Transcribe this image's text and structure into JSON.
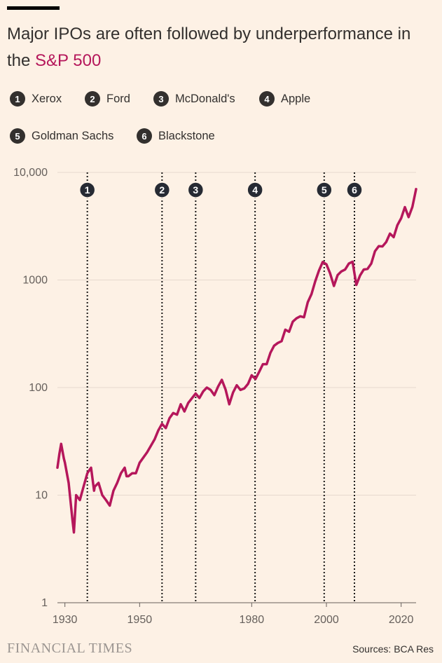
{
  "header": {
    "title_part1": "Major IPOs are often followed by underperformance in the ",
    "title_accent": "S&P 500",
    "accent_color": "#b5175b"
  },
  "legend": [
    {
      "num": "1",
      "label": "Xerox"
    },
    {
      "num": "2",
      "label": "Ford"
    },
    {
      "num": "3",
      "label": "McDonald's"
    },
    {
      "num": "4",
      "label": "Apple"
    },
    {
      "num": "5",
      "label": "Goldman Sachs"
    },
    {
      "num": "6",
      "label": "Blackstone"
    }
  ],
  "chart_data": {
    "type": "line",
    "title": "Major IPOs are often followed by underperformance in the S&P 500",
    "xlabel": "",
    "ylabel": "",
    "y_scale": "log",
    "ylim": [
      1,
      10000
    ],
    "xlim": [
      1928,
      2024
    ],
    "x_ticks": [
      "1930",
      "1950",
      "1980",
      "2000",
      "2020"
    ],
    "x_tick_values": [
      1930,
      1950,
      1980,
      2000,
      2020
    ],
    "y_ticks": [
      "1",
      "10",
      "100",
      "1000",
      "10,000"
    ],
    "y_tick_values": [
      1,
      10,
      100,
      1000,
      10000
    ],
    "grid": true,
    "series": [
      {
        "name": "S&P 500",
        "color": "#b5175b",
        "x": [
          1928,
          1928.5,
          1929,
          1929.7,
          1930,
          1931,
          1932,
          1932.4,
          1933,
          1934,
          1935,
          1936,
          1937,
          1937.8,
          1938,
          1939,
          1940,
          1941,
          1942,
          1943,
          1944,
          1945,
          1946,
          1946.5,
          1947,
          1948,
          1949,
          1950,
          1952,
          1954,
          1955,
          1956,
          1957,
          1958,
          1959,
          1960,
          1961,
          1962,
          1963,
          1965,
          1966,
          1967,
          1968,
          1969,
          1970,
          1971,
          1972,
          1973,
          1974,
          1975,
          1976,
          1977,
          1978,
          1979,
          1980,
          1981,
          1982,
          1983,
          1984,
          1985,
          1986,
          1987,
          1988,
          1989,
          1990,
          1991,
          1992,
          1993,
          1994,
          1995,
          1996,
          1997,
          1998,
          1999,
          2000,
          2001,
          2002,
          2003,
          2004,
          2005,
          2006,
          2007,
          2008,
          2009,
          2010,
          2011,
          2012,
          2013,
          2014,
          2015,
          2016,
          2017,
          2018,
          2019,
          2020,
          2021,
          2022,
          2023,
          2024
        ],
        "values": [
          18,
          24,
          30,
          22,
          20,
          13,
          6,
          4.5,
          10,
          9,
          12,
          16,
          18,
          11,
          12,
          13,
          10,
          9,
          8,
          11,
          13,
          16,
          18,
          15,
          15,
          16,
          16,
          20,
          25,
          33,
          40,
          46,
          42,
          52,
          58,
          56,
          70,
          60,
          72,
          88,
          80,
          92,
          100,
          95,
          85,
          102,
          118,
          96,
          70,
          90,
          105,
          95,
          98,
          108,
          130,
          120,
          140,
          165,
          165,
          210,
          245,
          260,
          270,
          345,
          330,
          410,
          440,
          460,
          450,
          620,
          740,
          970,
          1220,
          1470,
          1400,
          1150,
          880,
          1110,
          1200,
          1250,
          1420,
          1480,
          900,
          1100,
          1250,
          1270,
          1420,
          1850,
          2060,
          2050,
          2250,
          2700,
          2500,
          3230,
          3750,
          4760,
          3840,
          4770,
          7000
        ]
      }
    ],
    "events": [
      {
        "num": "1",
        "label": "Xerox",
        "year": 1936
      },
      {
        "num": "2",
        "label": "Ford",
        "year": 1956
      },
      {
        "num": "3",
        "label": "McDonald's",
        "year": 1965
      },
      {
        "num": "4",
        "label": "Apple",
        "year": 1980.9
      },
      {
        "num": "5",
        "label": "Goldman Sachs",
        "year": 1999.4
      },
      {
        "num": "6",
        "label": "Blackstone",
        "year": 2007.5
      }
    ]
  },
  "footer": {
    "brand": "FINANCIAL TIMES",
    "source": "Sources: BCA Res"
  }
}
